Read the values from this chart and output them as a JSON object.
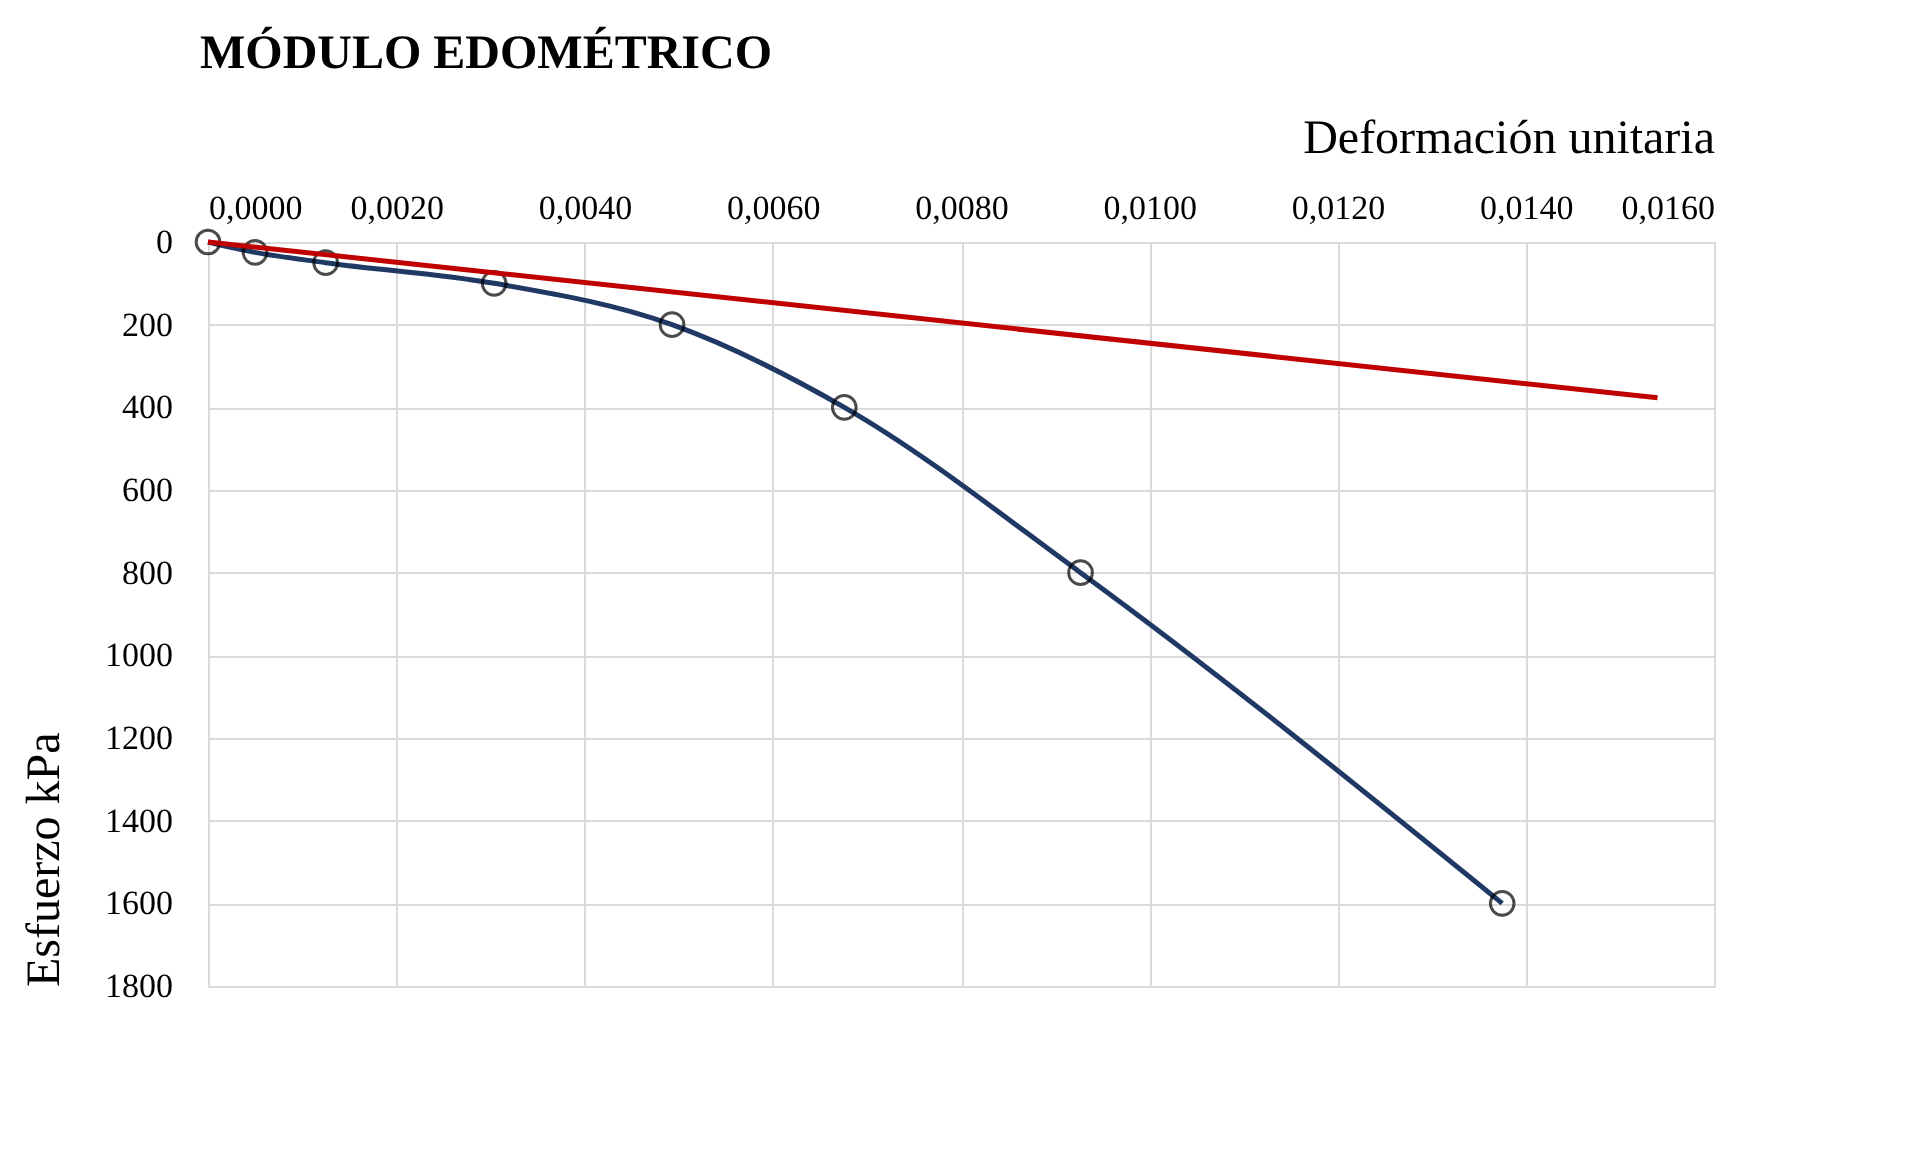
{
  "chart_data": {
    "type": "line",
    "title": "MÓDULO EDOMÉTRICO",
    "xlabel": "Deformación unitaria",
    "ylabel": "Esfuerzo  kPa",
    "xlim": [
      0,
      0.016
    ],
    "ylim": [
      1800,
      0
    ],
    "xticks": [
      {
        "value": 0,
        "label": "0,0000"
      },
      {
        "value": 0.002,
        "label": "0,0020"
      },
      {
        "value": 0.004,
        "label": "0,0040"
      },
      {
        "value": 0.006,
        "label": "0,0060"
      },
      {
        "value": 0.008,
        "label": "0,0080"
      },
      {
        "value": 0.01,
        "label": "0,0100"
      },
      {
        "value": 0.012,
        "label": "0,0120"
      },
      {
        "value": 0.014,
        "label": "0,0140"
      },
      {
        "value": 0.016,
        "label": "0,0160"
      }
    ],
    "yticks": [
      0,
      200,
      400,
      600,
      800,
      1000,
      1200,
      1400,
      1600,
      1800
    ],
    "grid": true,
    "series": [
      {
        "color": "#1f3864",
        "marker": "circle",
        "x": [
          0,
          0.0005,
          0.00125,
          0.00304,
          0.00493,
          0.00676,
          0.00927,
          0.01375
        ],
        "values": [
          0,
          25,
          50,
          100,
          200,
          400,
          800,
          1600
        ]
      },
      {
        "color": "#c00000",
        "marker": "none",
        "x": [
          0,
          0.0154
        ],
        "values": [
          0,
          377
        ]
      }
    ]
  }
}
